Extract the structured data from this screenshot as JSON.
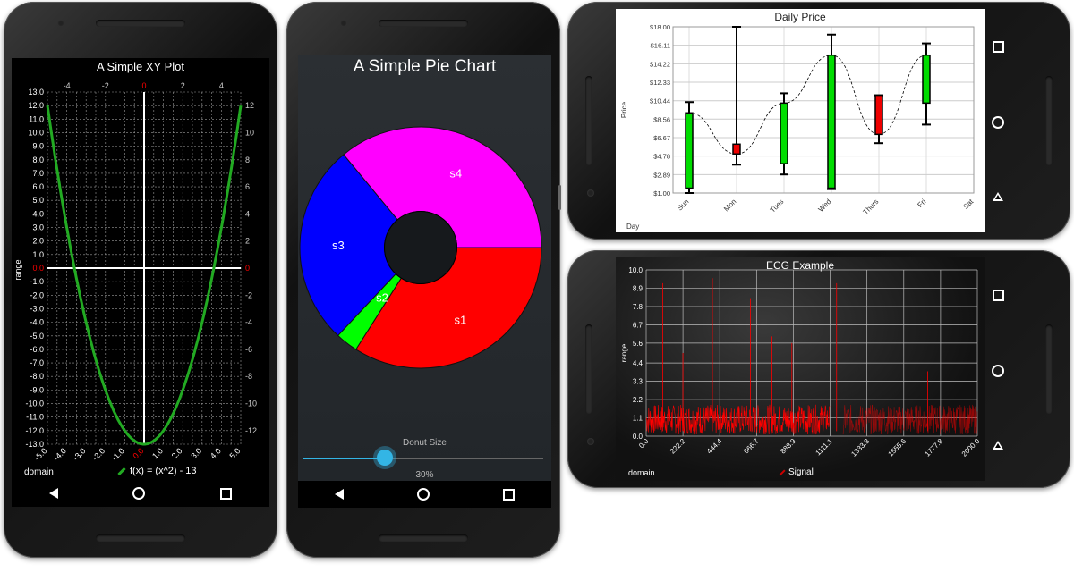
{
  "xy_plot": {
    "title": "A Simple XY Plot",
    "domain_label": "domain",
    "range_label": "range",
    "legend": "f(x) = (x^2) - 13",
    "series_color": "#22aa22",
    "zero_label_color": "#ff0000",
    "x_ticks": [
      "-5.0",
      "-4.0",
      "-3.0",
      "-2.0",
      "-1.0",
      "0.0",
      "1.0",
      "2.0",
      "3.0",
      "4.0",
      "5.0"
    ],
    "y_ticks": [
      "13.0",
      "12.0",
      "11.0",
      "10.0",
      "9.0",
      "8.0",
      "7.0",
      "6.0",
      "5.0",
      "4.0",
      "3.0",
      "2.0",
      "1.0",
      "0.0",
      "-1.0",
      "-2.0",
      "-3.0",
      "-4.0",
      "-5.0",
      "-6.0",
      "-7.0",
      "-8.0",
      "-9.0",
      "-10.0",
      "-11.0",
      "-12.0",
      "-13.0"
    ],
    "top_ticks": [
      "-4",
      "-2",
      "0",
      "2",
      "4"
    ],
    "right_ticks": [
      "12",
      "10",
      "8",
      "6",
      "4",
      "2",
      "0",
      "-2",
      "-4",
      "-6",
      "-8",
      "-10",
      "-12"
    ]
  },
  "pie": {
    "title": "A Simple Pie Chart",
    "slider_label": "Donut Size",
    "slider_value": "30%",
    "slider_fraction": 0.3,
    "donut_fraction": 0.3,
    "slices": [
      {
        "name": "s1",
        "value": 34,
        "color": "#ff0000"
      },
      {
        "name": "s2",
        "value": 3,
        "color": "#00ff00"
      },
      {
        "name": "s3",
        "value": 27,
        "color": "#0000ff"
      },
      {
        "name": "s4",
        "value": 36,
        "color": "#ff00ff"
      }
    ]
  },
  "candle": {
    "title": "Daily Price",
    "xlabel": "Day",
    "ylabel": "Price",
    "y_ticks": [
      "$18.00",
      "$16.11",
      "$14.22",
      "$12.33",
      "$10.44",
      "$8.56",
      "$6.67",
      "$4.78",
      "$2.89",
      "$1.00"
    ],
    "days": [
      "Sun",
      "Mon",
      "Tues",
      "Wed",
      "Thurs",
      "Fri",
      "Sat"
    ],
    "up_color": "#00dd00",
    "down_color": "#ee0000",
    "candles": [
      {
        "day": "Sun",
        "open": 1.5,
        "close": 9.2,
        "high": 10.3,
        "low": 1.0,
        "up": true
      },
      {
        "day": "Mon",
        "open": 6.0,
        "close": 5.0,
        "high": 18.0,
        "low": 3.9,
        "up": false
      },
      {
        "day": "Tues",
        "open": 4.0,
        "close": 10.2,
        "high": 11.2,
        "low": 2.9,
        "up": true
      },
      {
        "day": "Wed",
        "open": 1.5,
        "close": 15.1,
        "high": 17.2,
        "low": 1.4,
        "up": true
      },
      {
        "day": "Thurs",
        "open": 11.0,
        "close": 7.0,
        "high": 11.0,
        "low": 6.1,
        "up": false
      },
      {
        "day": "Fri",
        "open": 10.2,
        "close": 15.1,
        "high": 16.3,
        "low": 8.0,
        "up": true
      }
    ]
  },
  "ecg": {
    "title": "ECG Example",
    "domain_label": "domain",
    "range_label": "range",
    "legend": "Signal",
    "signal_color": "#ff0000",
    "y_ticks": [
      "10.0",
      "8.9",
      "7.8",
      "6.7",
      "5.6",
      "4.4",
      "3.3",
      "2.2",
      "1.1",
      "0.0"
    ],
    "x_ticks": [
      "0.0",
      "222.2",
      "444.4",
      "666.7",
      "888.9",
      "1111.1",
      "1333.3",
      "1555.6",
      "1777.8",
      "2000.0"
    ]
  }
}
